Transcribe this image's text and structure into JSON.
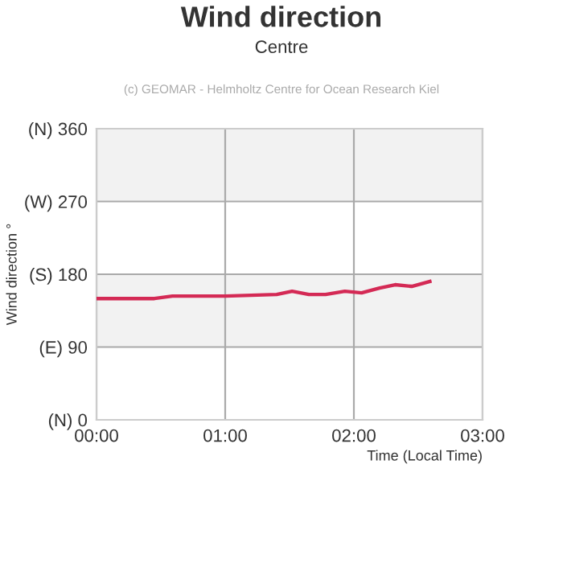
{
  "chart_data": {
    "type": "line",
    "title": "Wind direction",
    "subtitle": "Centre",
    "xlabel": "Time (Local Time)",
    "ylabel": "Wind direction °",
    "annotations": [
      "(c) GEOMAR - Helmholtz Centre for Ocean Research Kiel"
    ],
    "x": [
      0,
      0.45,
      0.59,
      1.0,
      1.4,
      1.52,
      1.65,
      1.78,
      1.93,
      2.06,
      2.2,
      2.32,
      2.45,
      2.59
    ],
    "series": [
      {
        "color": "#d42a55",
        "values": [
          150,
          150,
          153,
          153,
          155,
          159,
          155,
          155,
          159,
          157,
          163,
          167,
          165,
          171
        ]
      }
    ],
    "xlim": [
      0,
      3
    ],
    "xticks": [
      {
        "value": 0,
        "label": "00:00"
      },
      {
        "value": 1,
        "label": "01:00"
      },
      {
        "value": 2,
        "label": "02:00"
      },
      {
        "value": 3,
        "label": "03:00"
      }
    ],
    "ylim": [
      0,
      360
    ],
    "yticks": [
      {
        "value": 0,
        "label": "(N) 0"
      },
      {
        "value": 90,
        "label": "(E) 90"
      },
      {
        "value": 180,
        "label": "(S) 180"
      },
      {
        "value": 270,
        "label": "(W) 270"
      },
      {
        "value": 360,
        "label": "(N) 360"
      }
    ],
    "bands": [
      {
        "axis": "y",
        "from": 90,
        "to": 180,
        "color": "#f2f2f2"
      },
      {
        "axis": "y",
        "from": 270,
        "to": 360,
        "color": "#f2f2f2"
      }
    ],
    "grid": true,
    "line_style": "solid",
    "marker": "none"
  }
}
